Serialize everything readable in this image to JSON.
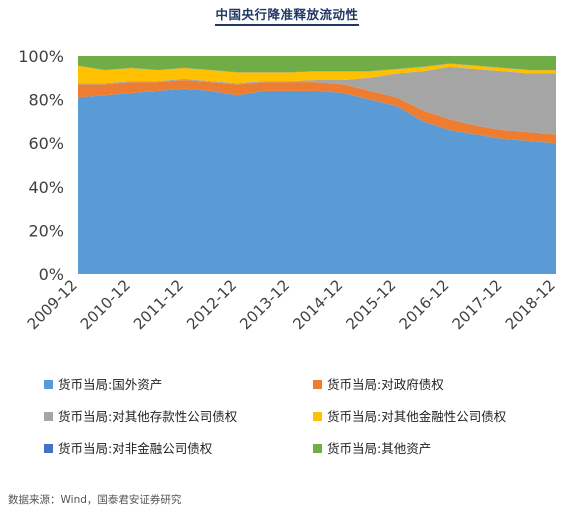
{
  "title": "中国央行降准释放流动性",
  "source_note": "数据来源：Wind，国泰君安证券研究",
  "chart_data": {
    "type": "area",
    "stacked": true,
    "normalized": true,
    "ylim": [
      0,
      100
    ],
    "yticks": [
      "0%",
      "20%",
      "40%",
      "60%",
      "80%",
      "100%"
    ],
    "xticks": [
      "2009-12",
      "2010-12",
      "2011-12",
      "2012-12",
      "2013-12",
      "2014-12",
      "2015-12",
      "2016-12",
      "2017-12",
      "2018-12"
    ],
    "legend_position": "bottom",
    "x": [
      "2009-12",
      "2010-06",
      "2010-12",
      "2011-06",
      "2011-12",
      "2012-06",
      "2012-12",
      "2013-06",
      "2013-12",
      "2014-06",
      "2014-12",
      "2015-06",
      "2015-12",
      "2016-06",
      "2016-12",
      "2017-06",
      "2017-12",
      "2018-06",
      "2018-12"
    ],
    "series": [
      {
        "name": "货币当局:国外资产",
        "color": "#5b9bd5",
        "values": [
          81,
          82,
          83,
          84,
          85,
          84,
          82,
          84,
          84,
          84,
          83,
          80,
          77,
          70,
          66,
          64,
          62,
          61,
          60
        ]
      },
      {
        "name": "货币当局:对政府债权",
        "color": "#ed7d31",
        "values": [
          6,
          5,
          5,
          4,
          4,
          4,
          5,
          4,
          4,
          4,
          4,
          4,
          4,
          5,
          5,
          4,
          4,
          4,
          4
        ]
      },
      {
        "name": "货币当局:对其他存款性公司债权",
        "color": "#a5a5a5",
        "values": [
          0.5,
          0.5,
          0.5,
          0.5,
          0.5,
          0.5,
          0.5,
          0.5,
          0.5,
          1,
          2,
          6,
          11,
          18,
          24,
          26,
          27,
          27,
          28
        ]
      },
      {
        "name": "货币当局:对其他金融性公司债权",
        "color": "#ffc000",
        "values": [
          8,
          6,
          6,
          5,
          5,
          5,
          5,
          4,
          4,
          4,
          4,
          3,
          2,
          2,
          1.5,
          1.5,
          1.5,
          1.5,
          1.5
        ]
      },
      {
        "name": "货币当局:对非金融公司债权",
        "color": "#4472c4",
        "values": [
          0.1,
          0.1,
          0.1,
          0.1,
          0.1,
          0.1,
          0.1,
          0.1,
          0.1,
          0.1,
          0.1,
          0.1,
          0.1,
          0.1,
          0.1,
          0.1,
          0.1,
          0.1,
          0.1
        ]
      },
      {
        "name": "货币当局:其他资产",
        "color": "#70ad47",
        "values": [
          4.4,
          6.4,
          5.4,
          6.4,
          5.4,
          6.4,
          7.4,
          7.4,
          7.4,
          6.9,
          6.9,
          6.9,
          5.9,
          4.9,
          3.4,
          4.4,
          5.4,
          6.4,
          6.4
        ]
      }
    ]
  }
}
